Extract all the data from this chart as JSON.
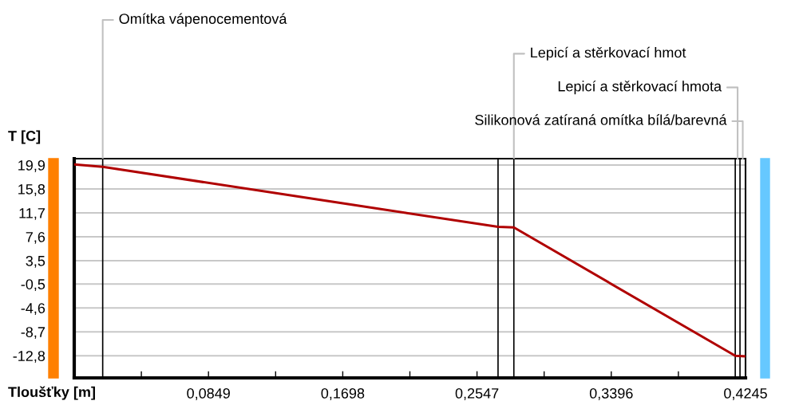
{
  "chart_data": {
    "type": "line",
    "xlabel": "Tloušťky [m]",
    "ylabel": "T [C]",
    "x": [
      0,
      0.018,
      0.268,
      0.278,
      0.418,
      0.4245
    ],
    "series": [
      {
        "color": "#b00000",
        "values": [
          20.0,
          19.6,
          9.3,
          9.2,
          -12.8,
          -12.9
        ]
      }
    ],
    "xlim": [
      0,
      0.4245
    ],
    "xticks": [
      {
        "value": 0.04245,
        "label": null
      },
      {
        "value": 0.0849,
        "label": "0,0849"
      },
      {
        "value": 0.12735,
        "label": null
      },
      {
        "value": 0.1698,
        "label": "0,1698"
      },
      {
        "value": 0.21225,
        "label": null
      },
      {
        "value": 0.2547,
        "label": "0,2547"
      },
      {
        "value": 0.29715,
        "label": null
      },
      {
        "value": 0.3396,
        "label": "0,3396"
      },
      {
        "value": 0.38205,
        "label": null
      },
      {
        "value": 0.4245,
        "label": "0,4245"
      }
    ],
    "ylim": [
      -16.6,
      21.0
    ],
    "yticks": [
      {
        "value": 19.9,
        "label": "19,9"
      },
      {
        "value": 15.8,
        "label": "15,8"
      },
      {
        "value": 11.7,
        "label": "11,7"
      },
      {
        "value": 7.6,
        "label": "7,6"
      },
      {
        "value": 3.5,
        "label": "3,5"
      },
      {
        "value": -0.5,
        "label": "-0,5"
      },
      {
        "value": -4.6,
        "label": "-4,6"
      },
      {
        "value": -8.7,
        "label": "-8,7"
      },
      {
        "value": -12.8,
        "label": "-12,8"
      }
    ],
    "grid": "y",
    "ref_lines": [
      {
        "axis": "x",
        "value": 0.018,
        "color": "#000000",
        "label": "Omítka vápenocementová"
      },
      {
        "axis": "x",
        "value": 0.268,
        "color": "#000000"
      },
      {
        "axis": "x",
        "value": 0.278,
        "color": "#000000",
        "label": "Lepicí a stěrkovací hmot"
      },
      {
        "axis": "x",
        "value": 0.418,
        "color": "#000000"
      },
      {
        "axis": "x",
        "value": 0.421,
        "color": "#000000",
        "label": "Lepicí a stěrkovací hmota"
      },
      {
        "axis": "x",
        "value": 0.4245,
        "color": "#000000",
        "label": "Silikonová zatíraná omítka bílá/barevná"
      }
    ]
  }
}
